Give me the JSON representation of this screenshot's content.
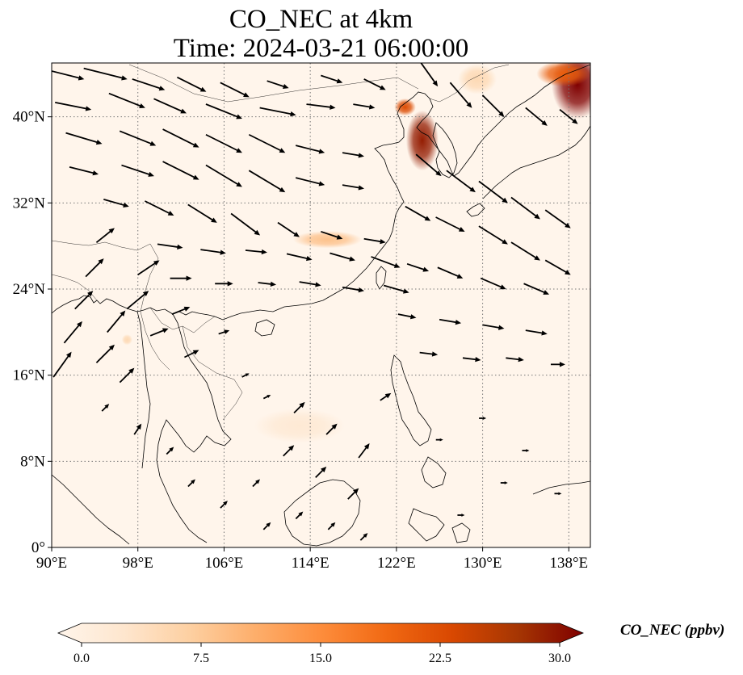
{
  "figure": {
    "title_line1": "CO_NEC at 4km",
    "title_line2": "Time: 2024-03-21 06:00:00"
  },
  "map": {
    "lon_range": [
      90,
      140
    ],
    "lat_range": [
      0,
      45
    ],
    "x_ticks": [
      {
        "value": 90,
        "label": "90°E"
      },
      {
        "value": 98,
        "label": "98°E"
      },
      {
        "value": 106,
        "label": "106°E"
      },
      {
        "value": 114,
        "label": "114°E"
      },
      {
        "value": 122,
        "label": "122°E"
      },
      {
        "value": 130,
        "label": "130°E"
      },
      {
        "value": 138,
        "label": "138°E"
      }
    ],
    "y_ticks": [
      {
        "value": 0,
        "label": "0°"
      },
      {
        "value": 8,
        "label": "8°N"
      },
      {
        "value": 16,
        "label": "16°N"
      },
      {
        "value": 24,
        "label": "24°N"
      },
      {
        "value": 32,
        "label": "32°N"
      },
      {
        "value": 40,
        "label": "40°N"
      }
    ],
    "gridlines": "dotted",
    "background_color": "#fff5eb",
    "coastline_color": "#000000",
    "plumes": [
      {
        "lon": 124.4,
        "lat": 37.8,
        "rx_deg": 1.5,
        "ry_deg": 2.8,
        "value": 28
      },
      {
        "lon": 122.8,
        "lat": 40.9,
        "rx_deg": 1.0,
        "ry_deg": 0.8,
        "value": 22
      },
      {
        "lon": 138.8,
        "lat": 43.0,
        "rx_deg": 2.4,
        "ry_deg": 3.2,
        "value": 30
      },
      {
        "lon": 137.5,
        "lat": 44.0,
        "rx_deg": 2.5,
        "ry_deg": 1.2,
        "value": 20
      },
      {
        "lon": 115.6,
        "lat": 28.6,
        "rx_deg": 3.2,
        "ry_deg": 0.8,
        "value": 9
      },
      {
        "lon": 129.5,
        "lat": 43.5,
        "rx_deg": 1.8,
        "ry_deg": 1.4,
        "value": 6
      },
      {
        "lon": 113.0,
        "lat": 11.3,
        "rx_deg": 4.2,
        "ry_deg": 1.6,
        "value": 3
      },
      {
        "lon": 97.0,
        "lat": 19.3,
        "rx_deg": 0.5,
        "ry_deg": 0.5,
        "value": 6
      }
    ],
    "wind_vectors": [
      [
        91,
        44,
        6,
        -1.5
      ],
      [
        95,
        44,
        6,
        -1.5
      ],
      [
        99,
        43,
        4.5,
        -1.5
      ],
      [
        103,
        43,
        4,
        -2
      ],
      [
        107,
        42.5,
        4,
        -2
      ],
      [
        111,
        43,
        3,
        -1
      ],
      [
        116,
        43.5,
        3,
        -1
      ],
      [
        120,
        43,
        3,
        -1.5
      ],
      [
        92,
        41,
        5,
        -1
      ],
      [
        97,
        41.5,
        5,
        -2
      ],
      [
        101,
        41,
        4.5,
        -2
      ],
      [
        106,
        40.5,
        5,
        -2
      ],
      [
        111,
        40.5,
        5,
        -1
      ],
      [
        115,
        41,
        4,
        -0.5
      ],
      [
        119,
        41,
        3,
        -0.5
      ],
      [
        93,
        38,
        5,
        -1.5
      ],
      [
        98,
        38,
        5,
        -2
      ],
      [
        102,
        38,
        5,
        -2.5
      ],
      [
        106,
        37.5,
        5,
        -2.5
      ],
      [
        110,
        37.5,
        5,
        -2.5
      ],
      [
        114,
        37,
        4,
        -1
      ],
      [
        118,
        36.5,
        3,
        -0.5
      ],
      [
        93,
        35,
        4,
        -1
      ],
      [
        98,
        35,
        4.5,
        -1.5
      ],
      [
        102,
        35,
        5,
        -2.5
      ],
      [
        106,
        34.5,
        5,
        -3
      ],
      [
        110,
        34,
        5,
        -3
      ],
      [
        114,
        34,
        4,
        -1
      ],
      [
        118,
        33.5,
        3,
        -0.5
      ],
      [
        96,
        32,
        3.5,
        -1
      ],
      [
        100,
        31.5,
        4,
        -2
      ],
      [
        104,
        31,
        4,
        -2.5
      ],
      [
        108,
        30,
        4,
        -3
      ],
      [
        112,
        29.5,
        3,
        -2
      ],
      [
        116,
        29,
        3,
        -1
      ],
      [
        120,
        28.5,
        3,
        -0.5
      ],
      [
        101,
        28,
        3.5,
        -0.5
      ],
      [
        105,
        27.5,
        3.5,
        -0.5
      ],
      [
        109,
        27.5,
        3,
        -0.3
      ],
      [
        113,
        27,
        3.5,
        -0.8
      ],
      [
        117,
        27,
        3.5,
        -1
      ],
      [
        121,
        26.5,
        4,
        -1.5
      ],
      [
        102,
        25,
        3,
        0
      ],
      [
        106,
        24.5,
        2.5,
        0
      ],
      [
        110,
        24.5,
        2.5,
        -0.3
      ],
      [
        114,
        24.5,
        3,
        -0.5
      ],
      [
        118,
        24,
        3,
        -0.5
      ],
      [
        122,
        24,
        3.5,
        -1
      ],
      [
        125,
        44,
        2.5,
        -3.5
      ],
      [
        128,
        42,
        3,
        -3.5
      ],
      [
        131,
        41,
        3,
        -3
      ],
      [
        135,
        40,
        3,
        -2.5
      ],
      [
        138,
        40,
        2.5,
        -2
      ],
      [
        125,
        35.5,
        3.5,
        -3
      ],
      [
        128,
        34,
        4,
        -3
      ],
      [
        131,
        33,
        4,
        -3
      ],
      [
        134,
        31.5,
        4,
        -3
      ],
      [
        137,
        30.5,
        3.5,
        -2.5
      ],
      [
        124,
        31,
        3.5,
        -2
      ],
      [
        127,
        30,
        4,
        -2
      ],
      [
        131,
        29,
        4,
        -2.5
      ],
      [
        134,
        27.5,
        4,
        -2.5
      ],
      [
        137,
        26,
        3.5,
        -2
      ],
      [
        124,
        26,
        3,
        -1
      ],
      [
        127,
        25.5,
        3.5,
        -1.5
      ],
      [
        131,
        24.5,
        3.5,
        -1.5
      ],
      [
        135,
        24,
        3.5,
        -1.5
      ],
      [
        123,
        21.5,
        2.5,
        -0.5
      ],
      [
        127,
        21,
        3,
        -0.5
      ],
      [
        131,
        20.5,
        3,
        -0.5
      ],
      [
        135,
        20,
        3,
        -0.5
      ],
      [
        125,
        18,
        2.5,
        -0.3
      ],
      [
        129,
        17.5,
        2.5,
        -0.3
      ],
      [
        133,
        17.5,
        2.5,
        -0.3
      ],
      [
        137,
        17,
        2,
        0
      ],
      [
        91,
        17,
        2.5,
        3.5
      ],
      [
        92,
        20,
        2.5,
        3
      ],
      [
        93,
        23,
        2.5,
        2.5
      ],
      [
        94,
        26,
        2.5,
        2.5
      ],
      [
        95,
        29,
        2.5,
        2
      ],
      [
        95,
        18,
        2.5,
        2.5
      ],
      [
        96,
        21,
        2.5,
        3
      ],
      [
        98,
        23,
        3,
        2.5
      ],
      [
        99,
        26,
        3,
        2
      ],
      [
        97,
        16,
        2,
        2
      ],
      [
        100,
        20,
        2.5,
        1
      ],
      [
        102,
        22,
        2.5,
        1
      ],
      [
        103,
        18,
        2,
        1
      ],
      [
        106,
        20,
        1.5,
        0.5
      ],
      [
        108,
        16,
        1,
        0.5
      ],
      [
        110,
        14,
        1,
        0.5
      ],
      [
        113,
        13,
        1.5,
        1.5
      ],
      [
        116,
        11,
        1.5,
        1.5
      ],
      [
        119,
        9,
        1.5,
        2
      ],
      [
        112,
        9,
        1.5,
        1.5
      ],
      [
        115,
        7,
        1.5,
        1.5
      ],
      [
        118,
        5,
        1.5,
        1.5
      ],
      [
        109,
        6,
        1,
        1
      ],
      [
        95,
        13,
        1,
        1
      ],
      [
        98,
        11,
        1,
        1.5
      ],
      [
        101,
        9,
        1,
        1
      ],
      [
        103,
        6,
        1,
        1
      ],
      [
        106,
        4,
        1,
        1
      ],
      [
        110,
        2,
        1,
        1
      ],
      [
        113,
        3,
        1,
        1
      ],
      [
        116,
        2,
        1,
        1
      ],
      [
        119,
        1,
        1,
        1
      ],
      [
        121,
        14,
        1.5,
        1
      ],
      [
        126,
        10,
        1,
        0
      ],
      [
        130,
        12,
        1,
        0
      ],
      [
        134,
        9,
        1,
        0
      ],
      [
        137,
        5,
        1,
        0
      ],
      [
        132,
        6,
        1,
        0
      ],
      [
        128,
        3,
        1,
        0
      ]
    ]
  },
  "colorbar": {
    "min": 0,
    "max": 30,
    "ticks": [
      "0.0",
      "7.5",
      "15.0",
      "22.5",
      "30.0"
    ],
    "label": "CO_NEC (ppbv)",
    "colormap": [
      "#fff5eb",
      "#fee6ce",
      "#fdd0a2",
      "#fdae6b",
      "#fd8d3c",
      "#f16913",
      "#d94801",
      "#a63603",
      "#7f0000"
    ],
    "extend": "both"
  }
}
